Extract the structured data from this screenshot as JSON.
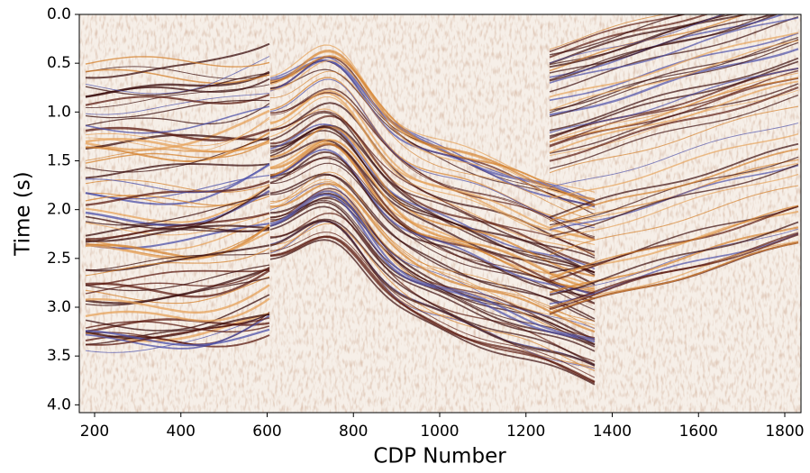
{
  "chart_data": {
    "type": "image",
    "xlabel": "CDP Number",
    "ylabel": "Time (s)",
    "xlim": [
      164.5,
      1837.6
    ],
    "ylim": [
      0,
      4.08
    ],
    "y_inverted": true,
    "xticks": [
      200,
      400,
      600,
      800,
      1000,
      1200,
      1400,
      1600,
      1800
    ],
    "yticks": [
      {
        "value": 0,
        "label": "0.0"
      },
      {
        "value": 0.5,
        "label": "0.5"
      },
      {
        "value": 1,
        "label": "1.0"
      },
      {
        "value": 1.5,
        "label": "1.5"
      },
      {
        "value": 2,
        "label": "2.0"
      },
      {
        "value": 2.5,
        "label": "2.5"
      },
      {
        "value": 3,
        "label": "3.0"
      },
      {
        "value": 3.5,
        "label": "3.5"
      },
      {
        "value": 4,
        "label": "4.0"
      }
    ]
  }
}
